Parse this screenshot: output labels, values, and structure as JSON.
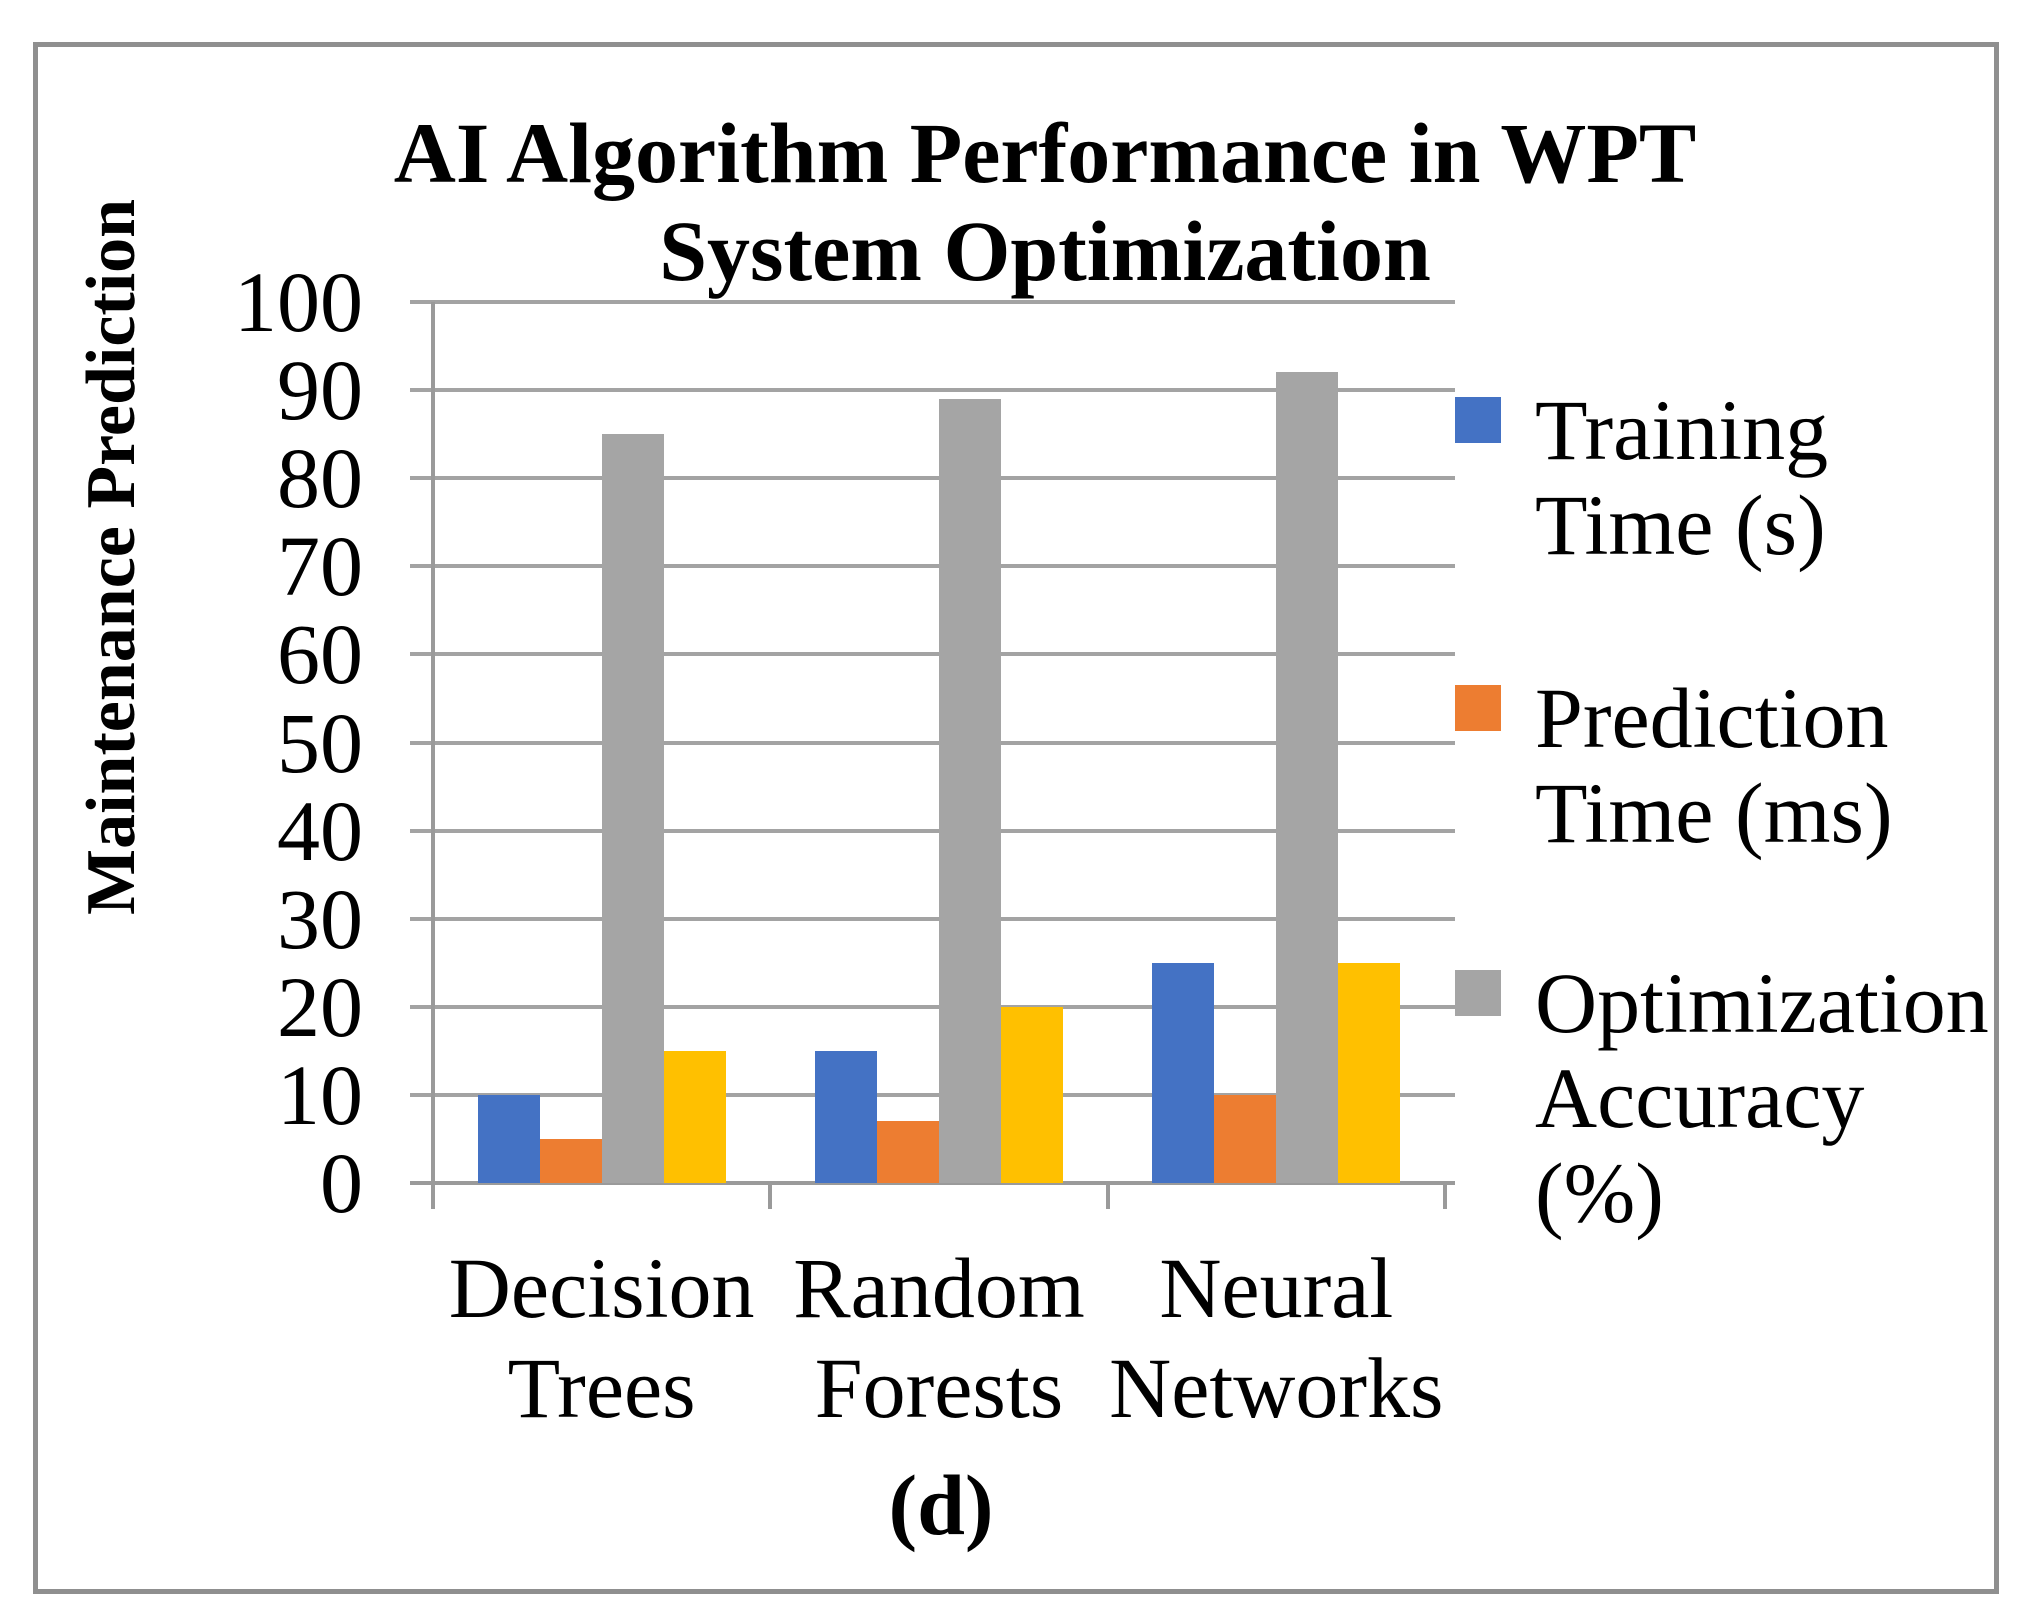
{
  "caption": "(d)",
  "chart_data": {
    "type": "bar",
    "title": "AI Algorithm Performance in WPT System Optimization",
    "title_lines": [
      "AI Algorithm Performance in WPT",
      "System Optimization"
    ],
    "ylabel": "Maintenance Prediction",
    "xlabel": "",
    "categories": [
      "Decision Trees",
      "Random Forests",
      "Neural Networks"
    ],
    "category_label_lines": [
      [
        "Decision",
        "Trees"
      ],
      [
        "Random",
        "Forests"
      ],
      [
        "Neural",
        "Networks"
      ]
    ],
    "series": [
      {
        "name": "Training Time (s)",
        "color": "#4472C4",
        "values": [
          10,
          15,
          25
        ]
      },
      {
        "name": "Prediction Time (ms)",
        "color": "#ED7D31",
        "values": [
          5,
          7,
          10
        ]
      },
      {
        "name": "Optimization Accuracy (%)",
        "color": "#A5A5A5",
        "values": [
          85,
          89,
          92
        ]
      },
      {
        "name": "",
        "color": "#FFC000",
        "values": [
          15,
          20,
          25
        ]
      }
    ],
    "legend": [
      {
        "lines": [
          "Training",
          "Time (s)"
        ],
        "color": "#4472C4"
      },
      {
        "lines": [
          "Prediction",
          "Time (ms)"
        ],
        "color": "#ED7D31"
      },
      {
        "lines": [
          "Optimization",
          "Accuracy",
          "(%)"
        ],
        "color": "#A5A5A5"
      }
    ],
    "legend_position": "right",
    "grid": true,
    "ylim": [
      0,
      100
    ],
    "yticks": [
      0,
      10,
      20,
      30,
      40,
      50,
      60,
      70,
      80,
      90,
      100
    ]
  },
  "colors": {
    "gridline": "#A3A3A3",
    "axis": "#9A9A9A",
    "frame_border": "#8F8F8F",
    "bar_blue": "#4472C4",
    "bar_orange": "#ED7D31",
    "bar_gray": "#A5A5A5",
    "bar_yellow": "#FFC000"
  }
}
